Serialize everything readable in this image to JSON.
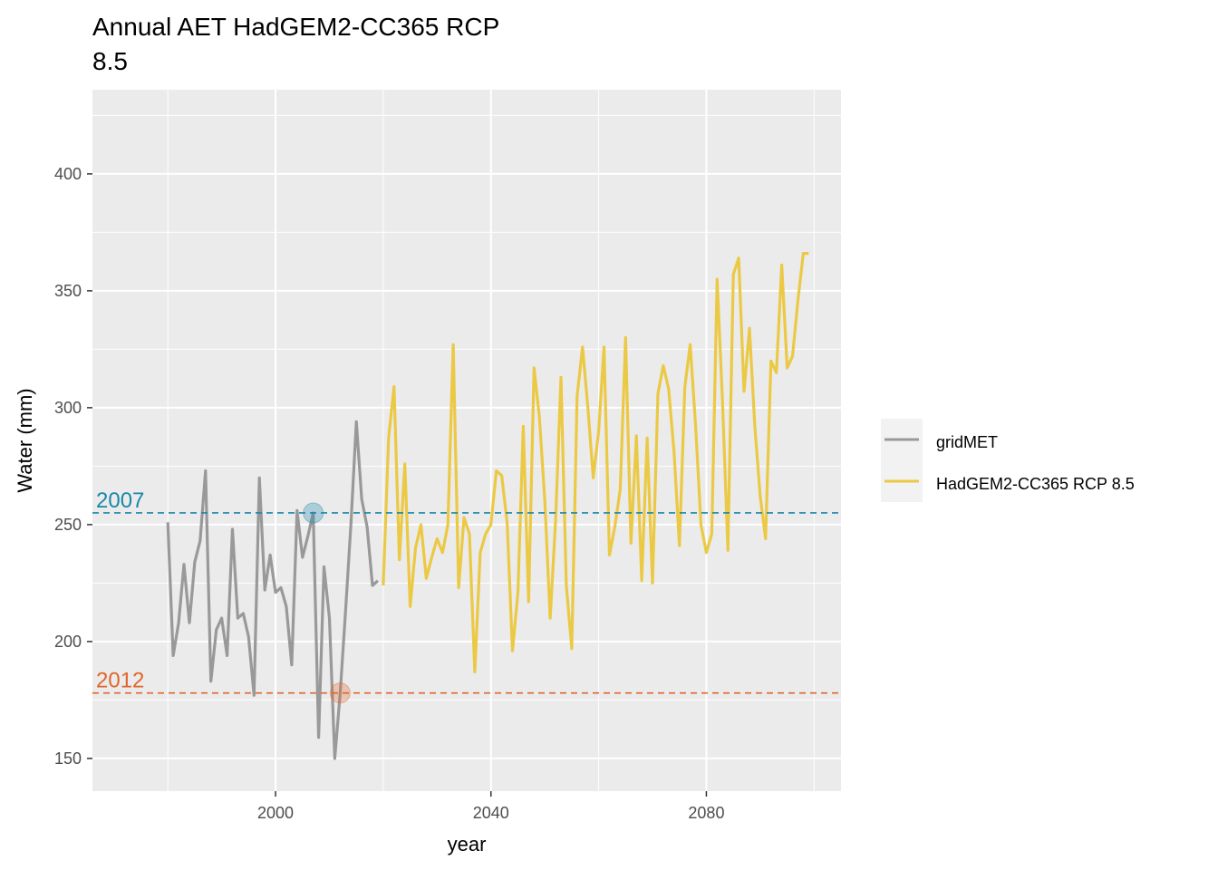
{
  "chart_data": {
    "type": "line",
    "title": "Annual AET HadGEM2-CC365 RCP 8.5",
    "title_lines": [
      "Annual AET HadGEM2-CC365 RCP",
      "8.5"
    ],
    "xlabel": "year",
    "ylabel": "Water (mm)",
    "xlim": [
      1966,
      2105
    ],
    "ylim": [
      136,
      436
    ],
    "x_ticks": [
      2000,
      2040,
      2080
    ],
    "x_tick_labels": [
      "2000",
      "2040",
      "2080"
    ],
    "x_minor_ticks": [
      1980,
      2020,
      2060,
      2100
    ],
    "y_ticks": [
      150,
      200,
      250,
      300,
      350,
      400
    ],
    "y_tick_labels": [
      "150",
      "200",
      "250",
      "300",
      "350",
      "400"
    ],
    "grid": true,
    "legend_position": "right",
    "series": [
      {
        "name": "gridMET",
        "color": "#999999",
        "x": [
          1980,
          1981,
          1982,
          1983,
          1984,
          1985,
          1986,
          1987,
          1988,
          1989,
          1990,
          1991,
          1992,
          1993,
          1994,
          1995,
          1996,
          1997,
          1998,
          1999,
          2000,
          2001,
          2002,
          2003,
          2004,
          2005,
          2006,
          2007,
          2008,
          2009,
          2010,
          2011,
          2012,
          2013,
          2014,
          2015,
          2016,
          2017,
          2018,
          2019
        ],
        "values": [
          251,
          194,
          208,
          233,
          208,
          234,
          243,
          273,
          183,
          205,
          210,
          194,
          248,
          210,
          212,
          202,
          177,
          270,
          222,
          237,
          221,
          223,
          215,
          190,
          256,
          236,
          245,
          255,
          159,
          232,
          210,
          150,
          178,
          213,
          250,
          294,
          261,
          249,
          224,
          226
        ]
      },
      {
        "name": "HadGEM2-CC365 RCP 8.5",
        "color": "#EBC944",
        "x": [
          2020,
          2021,
          2022,
          2023,
          2024,
          2025,
          2026,
          2027,
          2028,
          2029,
          2030,
          2031,
          2032,
          2033,
          2034,
          2035,
          2036,
          2037,
          2038,
          2039,
          2040,
          2041,
          2042,
          2043,
          2044,
          2045,
          2046,
          2047,
          2048,
          2049,
          2050,
          2051,
          2052,
          2053,
          2054,
          2055,
          2056,
          2057,
          2058,
          2059,
          2060,
          2061,
          2062,
          2063,
          2064,
          2065,
          2066,
          2067,
          2068,
          2069,
          2070,
          2071,
          2072,
          2073,
          2074,
          2075,
          2076,
          2077,
          2078,
          2079,
          2080,
          2081,
          2082,
          2083,
          2084,
          2085,
          2086,
          2087,
          2088,
          2089,
          2090,
          2091,
          2092,
          2093,
          2094,
          2095,
          2096,
          2097,
          2098,
          2099
        ],
        "values": [
          224,
          287,
          309,
          235,
          276,
          215,
          240,
          250,
          227,
          236,
          244,
          238,
          250,
          327,
          223,
          253,
          246,
          187,
          238,
          246,
          250,
          273,
          271,
          251,
          196,
          221,
          292,
          217,
          317,
          296,
          260,
          210,
          252,
          313,
          224,
          197,
          305,
          326,
          300,
          270,
          290,
          326,
          237,
          249,
          265,
          330,
          242,
          288,
          226,
          287,
          225,
          306,
          318,
          308,
          281,
          241,
          309,
          327,
          292,
          250,
          238,
          246,
          355,
          302,
          239,
          357,
          364,
          307,
          334,
          292,
          262,
          244,
          320,
          315,
          361,
          317,
          322,
          346,
          366,
          366
        ]
      }
    ],
    "reference_lines": [
      {
        "label": "2007",
        "value": 255,
        "year": 2007,
        "color": "#1B87A8"
      },
      {
        "label": "2012",
        "value": 178,
        "year": 2012,
        "color": "#E0662B"
      }
    ]
  }
}
